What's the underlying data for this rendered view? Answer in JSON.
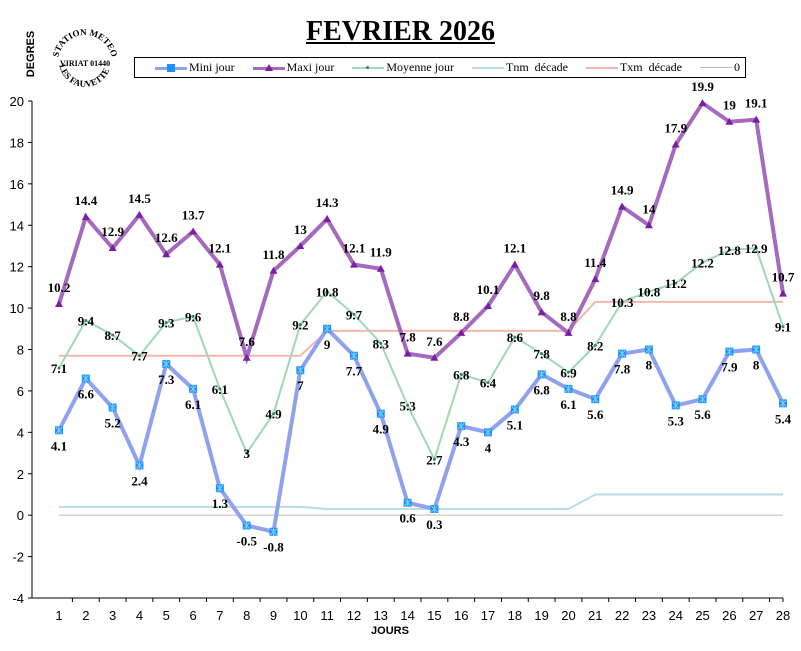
{
  "header": {
    "title": "FEVRIER 2026",
    "y_axis_label": "DEGRES",
    "x_axis_label": "JOURS",
    "stamp": {
      "top": "STATION METEO",
      "middle": "VIRIAT 01440",
      "bottom": "LES FAUVETTES"
    }
  },
  "legend": [
    {
      "label": "Mini jour",
      "color": "#8EA2EE",
      "marker": "asterisk-square"
    },
    {
      "label": "Maxi jour",
      "color": "#A569BD",
      "marker": "triangle"
    },
    {
      "label": "Moyenne jour",
      "color": "#9ED9B5",
      "marker": "dot"
    },
    {
      "label": "Tnm  décade",
      "color": "#B8DDE6",
      "marker": "none"
    },
    {
      "label": "Txm  décade",
      "color": "#F2B6B0",
      "marker": "none"
    },
    {
      "label": "0",
      "color": "#BBBBBB",
      "marker": "none"
    }
  ],
  "chart_data": {
    "type": "line",
    "title": "FEVRIER 2026",
    "xlabel": "JOURS",
    "ylabel": "DEGRES",
    "ylim": [
      -4,
      20
    ],
    "yticks": [
      -4,
      -2,
      0,
      2,
      4,
      6,
      8,
      10,
      12,
      14,
      16,
      18,
      20
    ],
    "x": [
      1,
      2,
      3,
      4,
      5,
      6,
      7,
      8,
      9,
      10,
      11,
      12,
      13,
      14,
      15,
      16,
      17,
      18,
      19,
      20,
      21,
      22,
      23,
      24,
      25,
      26,
      27,
      28
    ],
    "grid": false,
    "legend_position": "top",
    "series": [
      {
        "name": "Mini jour",
        "color": "#8EA2EE",
        "labels": true,
        "values": [
          4.1,
          6.6,
          5.2,
          2.4,
          7.3,
          6.1,
          1.3,
          -0.5,
          -0.8,
          7,
          9,
          7.7,
          4.9,
          0.6,
          0.3,
          4.3,
          4,
          5.1,
          6.8,
          6.1,
          5.6,
          7.8,
          8,
          5.3,
          5.6,
          7.9,
          8,
          5.4
        ]
      },
      {
        "name": "Maxi jour",
        "color": "#A569BD",
        "labels": true,
        "values": [
          10.2,
          14.4,
          12.9,
          14.5,
          12.6,
          13.7,
          12.1,
          7.6,
          11.8,
          13,
          14.3,
          12.1,
          11.9,
          7.8,
          7.6,
          8.8,
          10.1,
          12.1,
          9.8,
          8.8,
          11.4,
          14.9,
          14,
          17.9,
          19.9,
          19,
          19.1,
          10.7
        ]
      },
      {
        "name": "Moyenne jour",
        "color": "#9ED9B5",
        "labels": true,
        "values": [
          7.1,
          9.4,
          8.7,
          7.7,
          9.3,
          9.6,
          6.1,
          3,
          4.9,
          9.2,
          10.8,
          9.7,
          8.3,
          5.3,
          2.7,
          6.8,
          6.4,
          8.6,
          7.8,
          6.9,
          8.2,
          10.3,
          10.8,
          11.2,
          12.2,
          12.8,
          12.9,
          9.1
        ]
      },
      {
        "name": "Tnm  décade",
        "color": "#B8DDE6",
        "labels": false,
        "values": [
          0.4,
          0.4,
          0.4,
          0.4,
          0.4,
          0.4,
          0.4,
          0.4,
          0.4,
          0.4,
          0.3,
          0.3,
          0.3,
          0.3,
          0.3,
          0.3,
          0.3,
          0.3,
          0.3,
          0.3,
          1,
          1,
          1,
          1,
          1,
          1,
          1,
          1
        ]
      },
      {
        "name": "Txm  décade",
        "color": "#F2B6B0",
        "labels": false,
        "values": [
          7.7,
          7.7,
          7.7,
          7.7,
          7.7,
          7.7,
          7.7,
          7.7,
          7.7,
          7.7,
          8.9,
          8.9,
          8.9,
          8.9,
          8.9,
          8.9,
          8.9,
          8.9,
          8.9,
          8.9,
          10.3,
          10.3,
          10.3,
          10.3,
          10.3,
          10.3,
          10.3,
          10.3
        ]
      },
      {
        "name": "0",
        "color": "#BBBBBB",
        "labels": false,
        "values": [
          0,
          0,
          0,
          0,
          0,
          0,
          0,
          0,
          0,
          0,
          0,
          0,
          0,
          0,
          0,
          0,
          0,
          0,
          0,
          0,
          0,
          0,
          0,
          0,
          0,
          0,
          0,
          0
        ]
      }
    ]
  }
}
